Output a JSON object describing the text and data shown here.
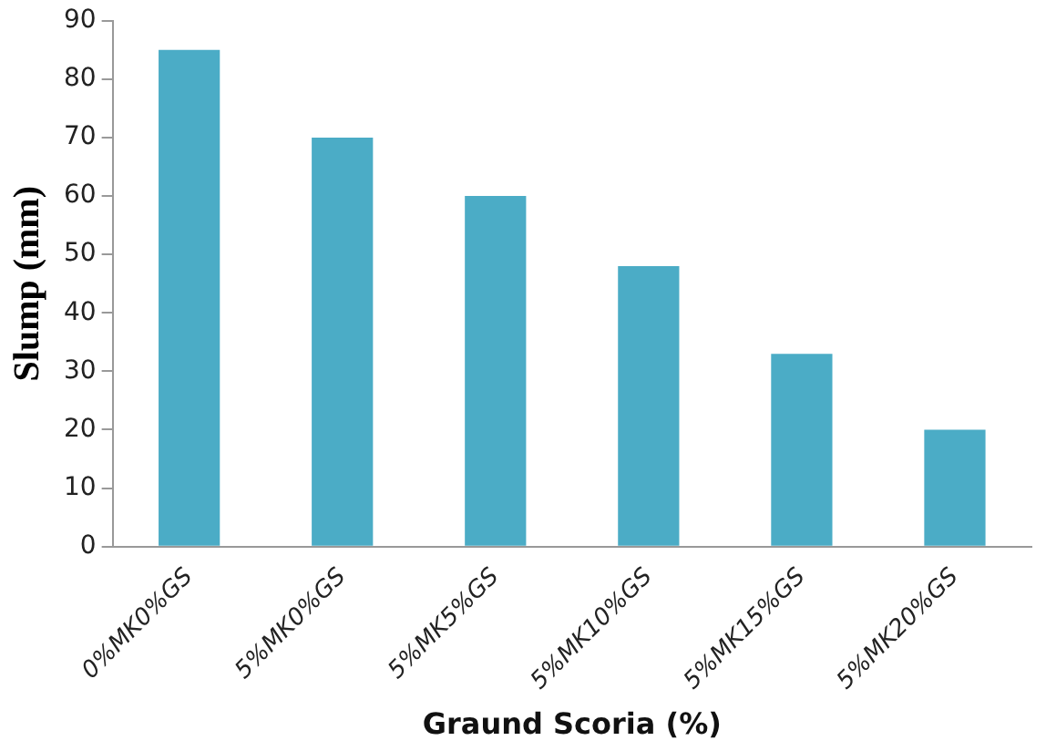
{
  "chart_data": {
    "type": "bar",
    "xlabel": "Graund Scoria (%)",
    "ylabel": "Slump (mm)",
    "categories": [
      "0%MK0%GS",
      "5%MK0%GS",
      "5%MK5%GS",
      "5%MK10%GS",
      "5%MK15%GS",
      "5%MK20%GS"
    ],
    "values": [
      85,
      70,
      60,
      48,
      33,
      20
    ],
    "color": "#4bacc6",
    "ylim": [
      0,
      90
    ],
    "yticks": [
      0,
      10,
      20,
      30,
      40,
      50,
      60,
      70,
      80,
      90
    ],
    "grid": false,
    "legend": false
  }
}
